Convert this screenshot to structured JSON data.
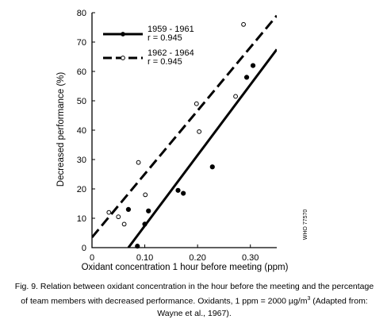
{
  "chart_data": {
    "type": "scatter",
    "xlabel": "Oxidant concentration 1 hour before meeting (ppm)",
    "ylabel": "Decreased performance (%)",
    "xlim": [
      0,
      0.35
    ],
    "ylim": [
      0,
      80
    ],
    "xticks": [
      0,
      0.1,
      0.2,
      0.3
    ],
    "xtick_labels": [
      "0",
      "0.10",
      "0.20",
      "0.30"
    ],
    "yticks": [
      0,
      10,
      20,
      30,
      40,
      50,
      60,
      70,
      80
    ],
    "ytick_labels": [
      "0",
      "10",
      "20",
      "30",
      "40",
      "50",
      "60",
      "70",
      "80"
    ],
    "grid": false,
    "legend_position": "top-left",
    "series": [
      {
        "name": "1959 - 1961",
        "r_label": "r = 0.945",
        "marker": "filled-circle",
        "line_style": "solid",
        "color": "#000000",
        "points": [
          [
            0.069,
            13
          ],
          [
            0.086,
            0.5
          ],
          [
            0.1,
            8
          ],
          [
            0.107,
            12.5
          ],
          [
            0.163,
            19.5
          ],
          [
            0.173,
            18.5
          ],
          [
            0.228,
            27.5
          ],
          [
            0.293,
            58
          ],
          [
            0.305,
            62
          ]
        ],
        "fit_line": [
          [
            0.069,
            0
          ],
          [
            0.35,
            67.5
          ]
        ]
      },
      {
        "name": "1962 - 1964",
        "r_label": "r = 0.945",
        "marker": "open-circle",
        "line_style": "dashed",
        "color": "#000000",
        "points": [
          [
            0.032,
            12
          ],
          [
            0.05,
            10.5
          ],
          [
            0.061,
            8
          ],
          [
            0.088,
            29
          ],
          [
            0.101,
            18
          ],
          [
            0.198,
            49
          ],
          [
            0.203,
            39.5
          ],
          [
            0.272,
            51.5
          ],
          [
            0.287,
            76
          ]
        ],
        "fit_line": [
          [
            0,
            3.5
          ],
          [
            0.35,
            79
          ]
        ]
      }
    ]
  },
  "side_label": "WHO 77570",
  "caption": {
    "line1": "Fig. 9. Relation between oxidant concentration in the hour before the meeting and the percentage",
    "line2_pre": "of team members with decreased performance.  Oxidants, 1 ppm = 2000 µg/m",
    "line2_sup": "3",
    "line2_post": " (Adapted from:",
    "line3": "Wayne et al., 1967)."
  }
}
